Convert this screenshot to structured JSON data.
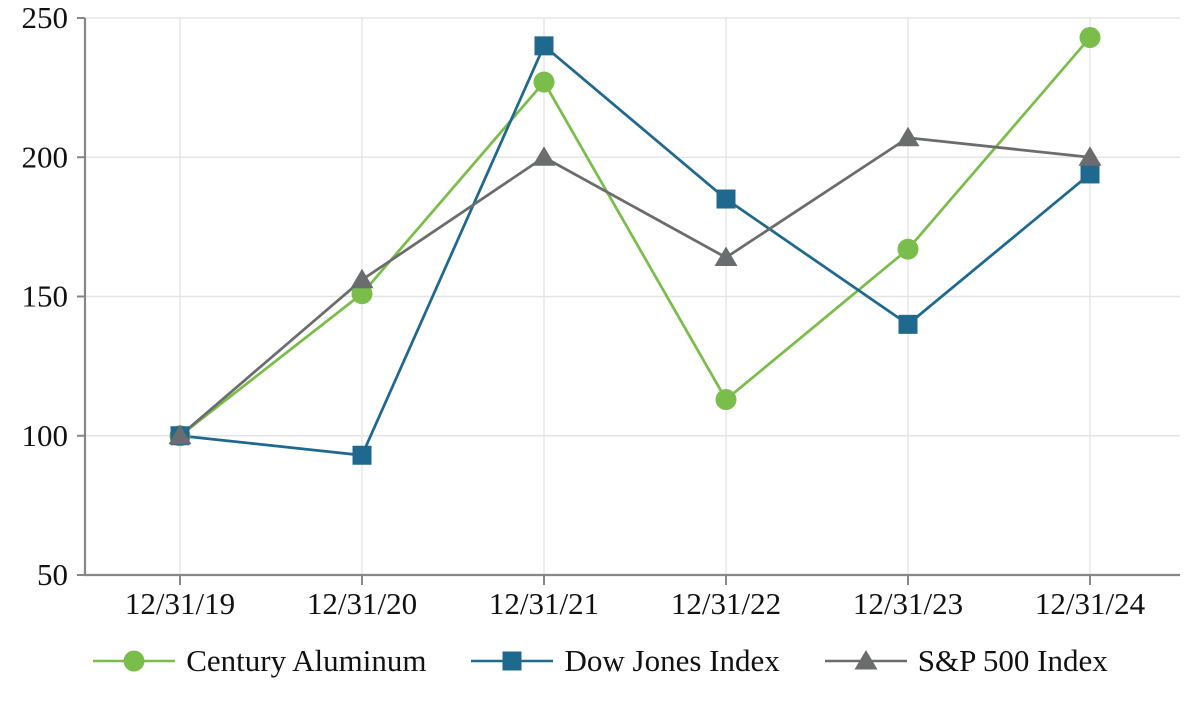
{
  "chart_data": {
    "type": "line",
    "title": "",
    "xlabel": "",
    "ylabel": "",
    "x": [
      "12/31/19",
      "12/31/20",
      "12/31/21",
      "12/31/22",
      "12/31/23",
      "12/31/24"
    ],
    "series": [
      {
        "name": "Century Aluminum",
        "marker": "circle",
        "color": "#7BBD4A",
        "values": [
          100,
          151,
          227,
          113,
          167,
          243
        ]
      },
      {
        "name": "Dow Jones Index",
        "marker": "square",
        "color": "#20698E",
        "values": [
          100,
          93,
          240,
          185,
          140,
          194
        ]
      },
      {
        "name": "S&P 500 Index",
        "marker": "triangle",
        "color": "#6B6C6E",
        "values": [
          100,
          156,
          200,
          164,
          207,
          200
        ]
      }
    ],
    "ylim": [
      50,
      250
    ],
    "yticks": [
      50,
      100,
      150,
      200,
      250
    ],
    "grid": true,
    "legend_position": "bottom",
    "colors": {
      "axis": "#85878A",
      "grid": "#E5E5E5",
      "text": "#111111",
      "background": "#FFFFFF"
    }
  }
}
